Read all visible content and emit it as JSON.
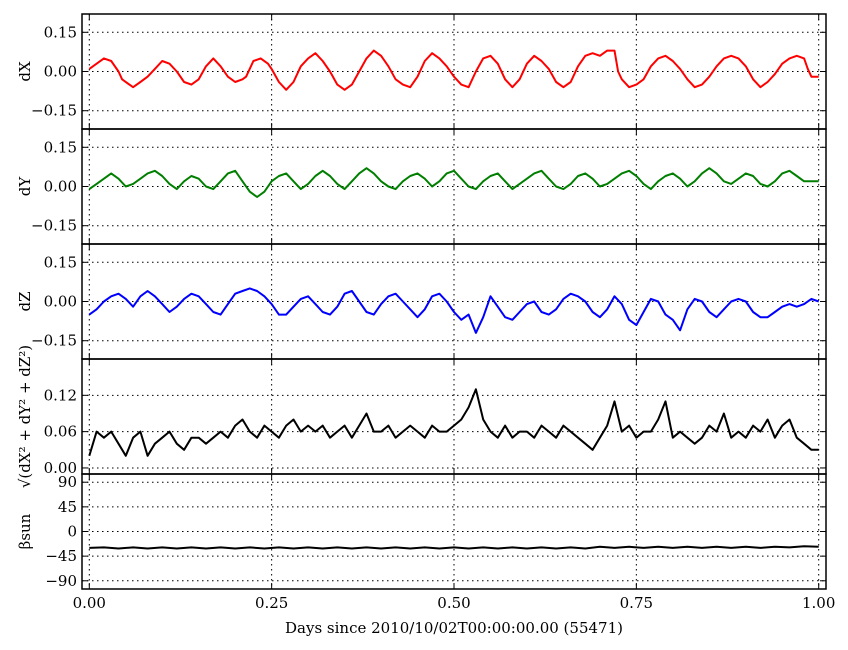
{
  "chart_data": {
    "type": "line",
    "xlabel": "Days since 2010/10/02T00:00:00.00 (55471)",
    "xlim": [
      -0.01,
      1.01
    ],
    "x_ticks": [
      0.0,
      0.25,
      0.5,
      0.75,
      1.0
    ],
    "x_tick_labels": [
      "0.00",
      "0.25",
      "0.50",
      "0.75",
      "1.00"
    ],
    "grid": true,
    "panels": [
      {
        "name": "dX",
        "ylabel": "dX",
        "ylim": [
          -0.22,
          0.22
        ],
        "y_ticks": [
          0.15,
          0.0,
          -0.15
        ],
        "y_tick_labels": [
          "0.15",
          "0.00",
          "−0.15"
        ],
        "color": "#ff0000",
        "x": [
          0.0,
          0.01,
          0.02,
          0.03,
          0.04,
          0.045,
          0.055,
          0.06,
          0.07,
          0.08,
          0.09,
          0.1,
          0.11,
          0.12,
          0.13,
          0.14,
          0.15,
          0.16,
          0.17,
          0.18,
          0.19,
          0.2,
          0.21,
          0.215,
          0.225,
          0.235,
          0.245,
          0.25,
          0.26,
          0.27,
          0.28,
          0.29,
          0.3,
          0.31,
          0.32,
          0.33,
          0.34,
          0.35,
          0.36,
          0.37,
          0.38,
          0.39,
          0.4,
          0.41,
          0.42,
          0.43,
          0.44,
          0.45,
          0.46,
          0.47,
          0.48,
          0.49,
          0.5,
          0.51,
          0.52,
          0.53,
          0.54,
          0.55,
          0.56,
          0.57,
          0.58,
          0.59,
          0.6,
          0.61,
          0.62,
          0.63,
          0.64,
          0.65,
          0.66,
          0.67,
          0.68,
          0.69,
          0.7,
          0.71,
          0.72,
          0.725,
          0.73,
          0.74,
          0.75,
          0.76,
          0.77,
          0.78,
          0.79,
          0.8,
          0.81,
          0.82,
          0.83,
          0.84,
          0.85,
          0.86,
          0.87,
          0.88,
          0.89,
          0.9,
          0.91,
          0.92,
          0.93,
          0.94,
          0.95,
          0.96,
          0.97,
          0.98,
          0.985,
          0.99,
          1.0
        ],
        "y": [
          0.01,
          0.03,
          0.05,
          0.04,
          0.0,
          -0.03,
          -0.05,
          -0.06,
          -0.04,
          -0.02,
          0.01,
          0.04,
          0.03,
          0.0,
          -0.04,
          -0.05,
          -0.03,
          0.02,
          0.05,
          0.02,
          -0.02,
          -0.04,
          -0.03,
          -0.02,
          0.04,
          0.05,
          0.03,
          0.01,
          -0.04,
          -0.07,
          -0.04,
          0.02,
          0.05,
          0.07,
          0.04,
          0.0,
          -0.05,
          -0.07,
          -0.05,
          0.0,
          0.05,
          0.08,
          0.06,
          0.02,
          -0.03,
          -0.05,
          -0.06,
          -0.02,
          0.04,
          0.07,
          0.05,
          0.02,
          -0.02,
          -0.05,
          -0.06,
          0.0,
          0.05,
          0.06,
          0.03,
          -0.03,
          -0.06,
          -0.03,
          0.03,
          0.06,
          0.04,
          0.01,
          -0.04,
          -0.06,
          -0.04,
          0.02,
          0.06,
          0.07,
          0.06,
          0.08,
          0.08,
          0.0,
          -0.03,
          -0.06,
          -0.05,
          -0.03,
          0.02,
          0.05,
          0.06,
          0.04,
          0.01,
          -0.03,
          -0.06,
          -0.05,
          -0.02,
          0.02,
          0.05,
          0.06,
          0.05,
          0.02,
          -0.03,
          -0.06,
          -0.04,
          -0.01,
          0.03,
          0.05,
          0.06,
          0.05,
          0.01,
          -0.02,
          -0.02
        ]
      },
      {
        "name": "dY",
        "ylabel": "dY",
        "ylim": [
          -0.22,
          0.22
        ],
        "y_ticks": [
          0.15,
          0.0,
          -0.15
        ],
        "y_tick_labels": [
          "0.15",
          "0.00",
          "−0.15"
        ],
        "color": "#007f00",
        "x": [
          0.0,
          0.01,
          0.02,
          0.03,
          0.04,
          0.05,
          0.06,
          0.07,
          0.08,
          0.09,
          0.1,
          0.11,
          0.12,
          0.13,
          0.14,
          0.15,
          0.16,
          0.17,
          0.18,
          0.19,
          0.2,
          0.21,
          0.22,
          0.23,
          0.24,
          0.25,
          0.26,
          0.27,
          0.28,
          0.29,
          0.3,
          0.31,
          0.32,
          0.33,
          0.34,
          0.35,
          0.36,
          0.37,
          0.38,
          0.39,
          0.4,
          0.41,
          0.42,
          0.43,
          0.44,
          0.45,
          0.46,
          0.47,
          0.48,
          0.49,
          0.5,
          0.51,
          0.52,
          0.53,
          0.54,
          0.55,
          0.56,
          0.57,
          0.58,
          0.59,
          0.6,
          0.61,
          0.62,
          0.63,
          0.64,
          0.65,
          0.66,
          0.67,
          0.68,
          0.69,
          0.7,
          0.71,
          0.72,
          0.73,
          0.74,
          0.75,
          0.76,
          0.77,
          0.78,
          0.79,
          0.8,
          0.81,
          0.82,
          0.83,
          0.84,
          0.85,
          0.86,
          0.87,
          0.88,
          0.89,
          0.9,
          0.91,
          0.92,
          0.93,
          0.94,
          0.95,
          0.96,
          0.97,
          0.98,
          0.99,
          1.0
        ],
        "y": [
          -0.01,
          0.01,
          0.03,
          0.05,
          0.03,
          0.0,
          0.01,
          0.03,
          0.05,
          0.06,
          0.04,
          0.01,
          -0.01,
          0.02,
          0.04,
          0.03,
          0.0,
          -0.01,
          0.02,
          0.05,
          0.06,
          0.02,
          -0.02,
          -0.04,
          -0.02,
          0.02,
          0.04,
          0.05,
          0.02,
          -0.01,
          0.01,
          0.04,
          0.06,
          0.04,
          0.01,
          -0.01,
          0.02,
          0.05,
          0.07,
          0.05,
          0.02,
          0.0,
          -0.01,
          0.02,
          0.04,
          0.05,
          0.03,
          0.0,
          0.02,
          0.05,
          0.06,
          0.03,
          0.0,
          -0.01,
          0.02,
          0.04,
          0.05,
          0.02,
          -0.01,
          0.01,
          0.03,
          0.05,
          0.06,
          0.03,
          0.0,
          -0.01,
          0.01,
          0.04,
          0.05,
          0.03,
          0.0,
          0.01,
          0.03,
          0.05,
          0.06,
          0.04,
          0.01,
          -0.01,
          0.02,
          0.04,
          0.05,
          0.03,
          0.0,
          0.02,
          0.05,
          0.07,
          0.05,
          0.02,
          0.01,
          0.03,
          0.05,
          0.04,
          0.01,
          0.0,
          0.02,
          0.05,
          0.06,
          0.04,
          0.02,
          0.02,
          0.02
        ]
      },
      {
        "name": "dZ",
        "ylabel": "dZ",
        "ylim": [
          -0.22,
          0.22
        ],
        "y_ticks": [
          0.15,
          0.0,
          -0.15
        ],
        "y_tick_labels": [
          "0.15",
          "0.00",
          "−0.15"
        ],
        "color": "#0000ff",
        "x": [
          0.0,
          0.01,
          0.02,
          0.03,
          0.04,
          0.05,
          0.06,
          0.07,
          0.08,
          0.09,
          0.1,
          0.11,
          0.12,
          0.13,
          0.14,
          0.15,
          0.16,
          0.17,
          0.18,
          0.19,
          0.2,
          0.21,
          0.22,
          0.23,
          0.24,
          0.25,
          0.26,
          0.27,
          0.28,
          0.29,
          0.3,
          0.31,
          0.32,
          0.33,
          0.34,
          0.35,
          0.36,
          0.37,
          0.38,
          0.39,
          0.4,
          0.41,
          0.42,
          0.43,
          0.44,
          0.45,
          0.46,
          0.47,
          0.48,
          0.49,
          0.5,
          0.51,
          0.52,
          0.53,
          0.54,
          0.55,
          0.56,
          0.57,
          0.58,
          0.59,
          0.6,
          0.61,
          0.62,
          0.63,
          0.64,
          0.65,
          0.66,
          0.67,
          0.68,
          0.69,
          0.7,
          0.71,
          0.72,
          0.73,
          0.74,
          0.75,
          0.76,
          0.77,
          0.78,
          0.79,
          0.8,
          0.81,
          0.82,
          0.83,
          0.84,
          0.85,
          0.86,
          0.87,
          0.88,
          0.89,
          0.9,
          0.91,
          0.92,
          0.93,
          0.94,
          0.95,
          0.96,
          0.97,
          0.98,
          0.99,
          1.0
        ],
        "y": [
          -0.05,
          -0.03,
          0.0,
          0.02,
          0.03,
          0.01,
          -0.02,
          0.02,
          0.04,
          0.02,
          -0.01,
          -0.04,
          -0.02,
          0.01,
          0.03,
          0.02,
          -0.01,
          -0.04,
          -0.05,
          -0.01,
          0.03,
          0.04,
          0.05,
          0.04,
          0.02,
          -0.01,
          -0.05,
          -0.05,
          -0.02,
          0.01,
          0.02,
          -0.01,
          -0.04,
          -0.05,
          -0.02,
          0.03,
          0.04,
          0.0,
          -0.04,
          -0.05,
          -0.01,
          0.02,
          0.03,
          0.0,
          -0.03,
          -0.06,
          -0.03,
          0.02,
          0.03,
          0.0,
          -0.04,
          -0.07,
          -0.05,
          -0.12,
          -0.06,
          0.02,
          -0.02,
          -0.06,
          -0.07,
          -0.04,
          -0.01,
          0.0,
          -0.04,
          -0.05,
          -0.03,
          0.01,
          0.03,
          0.02,
          0.0,
          -0.04,
          -0.06,
          -0.03,
          0.02,
          -0.01,
          -0.07,
          -0.09,
          -0.04,
          0.01,
          0.0,
          -0.05,
          -0.07,
          -0.11,
          -0.03,
          0.01,
          0.0,
          -0.04,
          -0.06,
          -0.03,
          0.0,
          0.01,
          0.0,
          -0.04,
          -0.06,
          -0.06,
          -0.04,
          -0.02,
          -0.01,
          -0.02,
          -0.01,
          0.01,
          0.0
        ]
      },
      {
        "name": "sqrt(dX^2+dY^2+dZ^2)",
        "ylabel": "√(dX² + dY² + dZ²)",
        "ylim": [
          -0.01,
          0.18
        ],
        "y_ticks": [
          0.12,
          0.06,
          0.0
        ],
        "y_tick_labels": [
          "0.12",
          "0.06",
          "0.00"
        ],
        "color": "#000000",
        "x": [
          0.0,
          0.01,
          0.02,
          0.03,
          0.04,
          0.05,
          0.06,
          0.07,
          0.08,
          0.09,
          0.1,
          0.11,
          0.12,
          0.13,
          0.14,
          0.15,
          0.16,
          0.17,
          0.18,
          0.19,
          0.2,
          0.21,
          0.22,
          0.23,
          0.24,
          0.25,
          0.26,
          0.27,
          0.28,
          0.29,
          0.3,
          0.31,
          0.32,
          0.33,
          0.34,
          0.35,
          0.36,
          0.37,
          0.38,
          0.39,
          0.4,
          0.41,
          0.42,
          0.43,
          0.44,
          0.45,
          0.46,
          0.47,
          0.48,
          0.49,
          0.5,
          0.51,
          0.52,
          0.53,
          0.54,
          0.55,
          0.56,
          0.57,
          0.58,
          0.59,
          0.6,
          0.61,
          0.62,
          0.63,
          0.64,
          0.65,
          0.66,
          0.67,
          0.68,
          0.69,
          0.7,
          0.71,
          0.72,
          0.73,
          0.74,
          0.75,
          0.76,
          0.77,
          0.78,
          0.79,
          0.8,
          0.81,
          0.82,
          0.83,
          0.84,
          0.85,
          0.86,
          0.87,
          0.88,
          0.89,
          0.9,
          0.91,
          0.92,
          0.93,
          0.94,
          0.95,
          0.96,
          0.97,
          0.98,
          0.99,
          1.0
        ],
        "y": [
          0.02,
          0.06,
          0.05,
          0.06,
          0.04,
          0.02,
          0.05,
          0.06,
          0.02,
          0.04,
          0.05,
          0.06,
          0.04,
          0.03,
          0.05,
          0.05,
          0.04,
          0.05,
          0.06,
          0.05,
          0.07,
          0.08,
          0.06,
          0.05,
          0.07,
          0.06,
          0.05,
          0.07,
          0.08,
          0.06,
          0.07,
          0.06,
          0.07,
          0.05,
          0.06,
          0.07,
          0.05,
          0.07,
          0.09,
          0.06,
          0.06,
          0.07,
          0.05,
          0.06,
          0.07,
          0.06,
          0.05,
          0.07,
          0.06,
          0.06,
          0.07,
          0.08,
          0.1,
          0.13,
          0.08,
          0.06,
          0.05,
          0.07,
          0.05,
          0.06,
          0.06,
          0.05,
          0.07,
          0.06,
          0.05,
          0.07,
          0.06,
          0.05,
          0.04,
          0.03,
          0.05,
          0.07,
          0.11,
          0.06,
          0.07,
          0.05,
          0.06,
          0.06,
          0.08,
          0.11,
          0.05,
          0.06,
          0.05,
          0.04,
          0.05,
          0.07,
          0.06,
          0.09,
          0.05,
          0.06,
          0.05,
          0.07,
          0.06,
          0.08,
          0.05,
          0.07,
          0.08,
          0.05,
          0.04,
          0.03,
          0.03
        ]
      },
      {
        "name": "beta_sun",
        "ylabel": "βsun",
        "ylim": [
          -105,
          105
        ],
        "y_ticks": [
          90,
          45,
          0,
          -45,
          -90
        ],
        "y_tick_labels": [
          "90",
          "45",
          "0",
          "−45",
          "−90"
        ],
        "color": "#000000",
        "x": [
          0.0,
          0.02,
          0.04,
          0.06,
          0.08,
          0.1,
          0.12,
          0.14,
          0.16,
          0.18,
          0.2,
          0.22,
          0.24,
          0.26,
          0.28,
          0.3,
          0.32,
          0.34,
          0.36,
          0.38,
          0.4,
          0.42,
          0.44,
          0.46,
          0.48,
          0.5,
          0.52,
          0.54,
          0.56,
          0.58,
          0.6,
          0.62,
          0.64,
          0.66,
          0.68,
          0.7,
          0.72,
          0.74,
          0.76,
          0.78,
          0.8,
          0.82,
          0.84,
          0.86,
          0.88,
          0.9,
          0.92,
          0.94,
          0.96,
          0.98,
          1.0
        ],
        "y": [
          -30,
          -29,
          -31,
          -29,
          -31,
          -29,
          -31,
          -29,
          -31,
          -29,
          -31,
          -29,
          -31,
          -29,
          -31,
          -29,
          -31,
          -29,
          -31,
          -29,
          -31,
          -29,
          -31,
          -29,
          -31,
          -29,
          -31,
          -29,
          -31,
          -29,
          -31,
          -29,
          -31,
          -29,
          -31,
          -28,
          -30,
          -28,
          -30,
          -28,
          -30,
          -28,
          -30,
          -28,
          -30,
          -28,
          -30,
          -28,
          -29,
          -27,
          -28
        ]
      }
    ]
  }
}
